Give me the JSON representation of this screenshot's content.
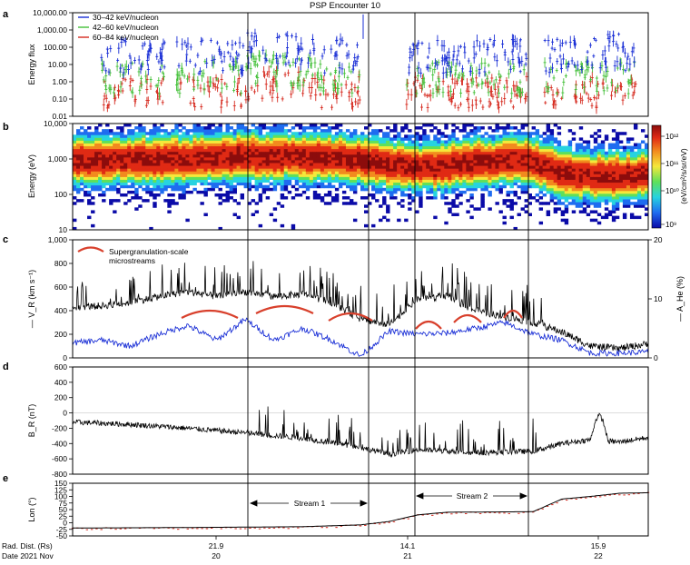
{
  "figure": {
    "title": "PSP Encounter 10",
    "footer": {
      "row1_label": "Rad. Dist. (Rs)",
      "row2_label": "Date 2021 Nov",
      "dist_ticks": [
        "21.9",
        "14.1",
        "15.9"
      ],
      "date_ticks": [
        "20",
        "21",
        "22"
      ]
    }
  },
  "chart_data": [
    {
      "panel": "a",
      "type": "scatter",
      "ylabel": "Energy flux",
      "y_scale": "log",
      "ylim": [
        0.01,
        10000
      ],
      "yticks": [
        "0.01",
        "0.10",
        "1.00",
        "10.00",
        "100.00",
        "1,000.00",
        "10,000.00"
      ],
      "series": [
        {
          "name": "30–42 keV/nucleon",
          "color": "#1a2fd6",
          "typical_range": [
            3,
            300
          ],
          "peak": 8000
        },
        {
          "name": "42–60 keV/nucleon",
          "color": "#43c038",
          "typical_range": [
            0.2,
            15
          ]
        },
        {
          "name": "60–84 keV/nucleon",
          "color": "#d62a1f",
          "typical_range": [
            0.03,
            2
          ]
        }
      ]
    },
    {
      "panel": "b",
      "type": "heatmap",
      "ylabel": "Energy (eV)",
      "y_scale": "log",
      "ylim": [
        10,
        20000
      ],
      "yticks": [
        "10",
        "100",
        "1,000",
        "10,000"
      ],
      "colorbar": {
        "label": "(eV/cm²/s/sr/eV)",
        "ticks": [
          "10⁹",
          "10¹⁰",
          "10¹¹",
          "10¹²"
        ],
        "colors": [
          "#0b0ba8",
          "#1f6cf0",
          "#27d3e0",
          "#5fe05a",
          "#f5e83a",
          "#f28a1e",
          "#e02a14",
          "#8c0c0c"
        ]
      },
      "peak_energy_profile": {
        "x": [
          0,
          0.15,
          0.3,
          0.45,
          0.55,
          0.62,
          0.72,
          0.78,
          0.85,
          0.92,
          1.0
        ],
        "peak_eV": [
          1500,
          1500,
          2000,
          1800,
          1100,
          900,
          1300,
          1500,
          600,
          450,
          550
        ]
      }
    },
    {
      "panel": "c",
      "type": "line",
      "ylabel_left": "— V_R (km s⁻¹)",
      "ylabel_right": "— A_He (%)",
      "ylim_left": [
        0,
        1000
      ],
      "ylim_right": [
        0,
        20
      ],
      "yticks_left": [
        "0",
        "200",
        "400",
        "600",
        "800",
        "1,000"
      ],
      "yticks_right": [
        "0",
        "10",
        "20"
      ],
      "legend": "Supergranulation-scale microstreams",
      "series": [
        {
          "name": "V_R",
          "color": "#000000",
          "x": [
            0,
            0.05,
            0.1,
            0.15,
            0.2,
            0.25,
            0.3,
            0.35,
            0.4,
            0.45,
            0.5,
            0.55,
            0.6,
            0.65,
            0.7,
            0.75,
            0.8,
            0.85,
            0.9,
            0.95,
            1.0
          ],
          "y": [
            430,
            440,
            470,
            520,
            560,
            520,
            560,
            520,
            540,
            470,
            330,
            280,
            500,
            520,
            400,
            350,
            300,
            220,
            100,
            80,
            120
          ]
        },
        {
          "name": "A_He",
          "color": "#1a2fd6",
          "x": [
            0,
            0.05,
            0.1,
            0.15,
            0.2,
            0.25,
            0.3,
            0.35,
            0.4,
            0.45,
            0.5,
            0.55,
            0.6,
            0.65,
            0.7,
            0.75,
            0.8,
            0.85,
            0.9,
            0.95,
            1.0
          ],
          "y": [
            2.5,
            3.0,
            2.0,
            4.0,
            5.5,
            3.0,
            6.5,
            3.0,
            5.0,
            3.0,
            0.3,
            4.5,
            4.0,
            4.2,
            5.0,
            6.0,
            4.0,
            3.0,
            0.8,
            0.8,
            1.0
          ]
        }
      ]
    },
    {
      "panel": "d",
      "type": "line",
      "ylabel": "B_R (nT)",
      "ylim": [
        -800,
        600
      ],
      "yticks": [
        "-800",
        "-600",
        "-400",
        "-200",
        "0",
        "200",
        "400",
        "600"
      ],
      "series": [
        {
          "name": "B_R",
          "color": "#000000",
          "x": [
            0,
            0.1,
            0.2,
            0.3,
            0.4,
            0.5,
            0.55,
            0.6,
            0.7,
            0.8,
            0.85,
            0.9,
            0.95,
            1.0
          ],
          "y": [
            -120,
            -150,
            -200,
            -260,
            -330,
            -450,
            -540,
            -480,
            -520,
            -500,
            -400,
            -350,
            -380,
            -320
          ]
        }
      ]
    },
    {
      "panel": "e",
      "type": "line",
      "ylabel": "Lon (°)",
      "ylim": [
        -50,
        150
      ],
      "yticks": [
        "-50",
        "-25",
        "0",
        "25",
        "50",
        "75",
        "100",
        "125",
        "150"
      ],
      "annotations": [
        "Stream 1",
        "Stream 2"
      ],
      "series": [
        {
          "name": "Lon",
          "color": "#000000",
          "x": [
            0,
            0.2,
            0.4,
            0.5,
            0.55,
            0.58,
            0.6,
            0.65,
            0.8,
            0.85,
            0.9,
            0.95,
            1.0
          ],
          "y": [
            -20,
            -18,
            -15,
            -8,
            5,
            20,
            30,
            40,
            42,
            90,
            100,
            112,
            114
          ]
        }
      ]
    }
  ]
}
